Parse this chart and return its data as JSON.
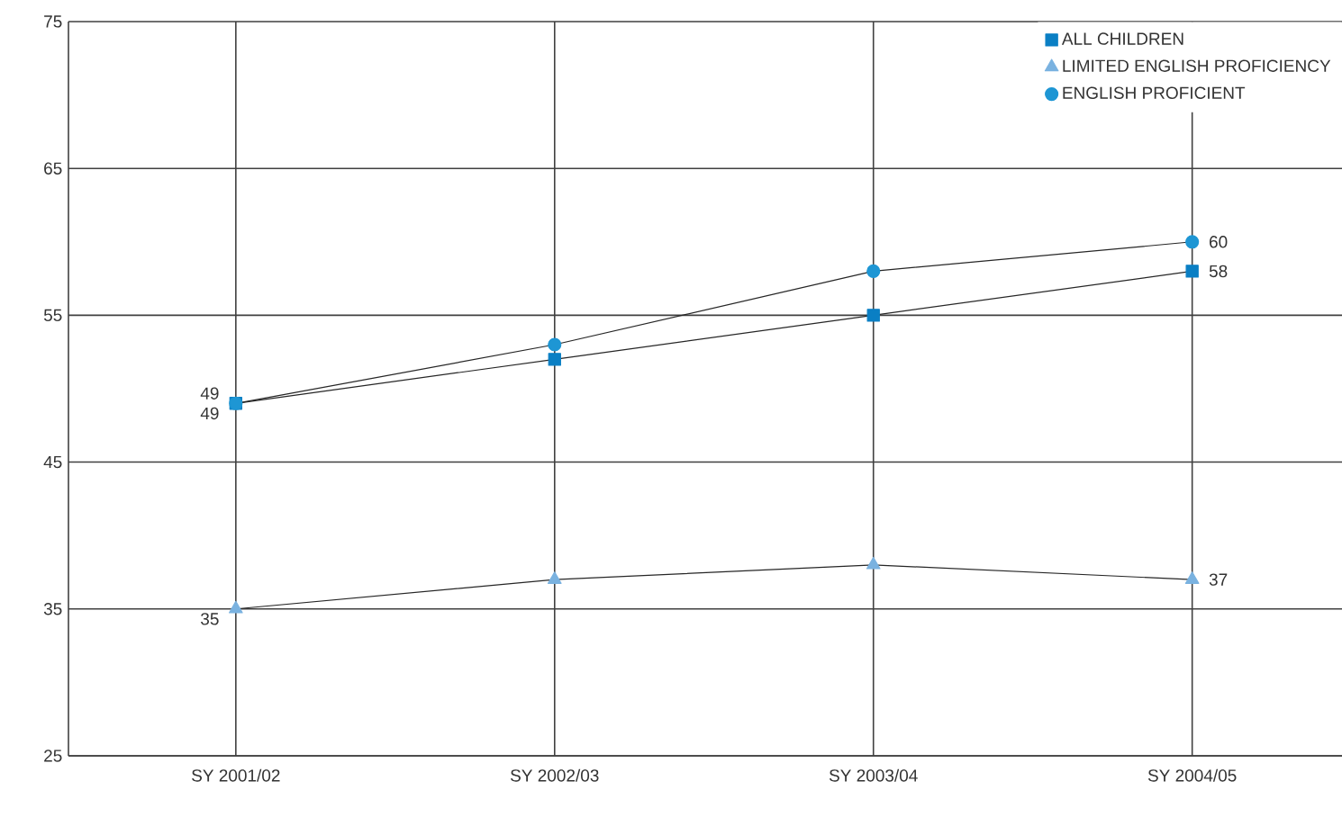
{
  "chart_data": {
    "type": "line",
    "categories": [
      "SY 2001/02",
      "SY 2002/03",
      "SY 2003/04",
      "SY 2004/05"
    ],
    "series": [
      {
        "name": "ALL CHILDREN",
        "color": "#0a7fc4",
        "marker": "square",
        "values": [
          49,
          52,
          55,
          58
        ],
        "value_labels": [
          "49",
          null,
          null,
          "58"
        ]
      },
      {
        "name": "LIMITED ENGLISH PROFICIENCY",
        "color": "#7ab2e0",
        "marker": "triangle",
        "values": [
          35,
          37,
          38,
          37
        ],
        "value_labels": [
          "35",
          null,
          null,
          "37"
        ]
      },
      {
        "name": "ENGLISH PROFICIENT",
        "color": "#1e96d4",
        "marker": "circle",
        "values": [
          49,
          53,
          58,
          60
        ],
        "value_labels": [
          "49",
          null,
          null,
          "60"
        ]
      }
    ],
    "ylim": [
      25,
      75
    ],
    "yticks": [
      25,
      35,
      45,
      55,
      65,
      75
    ],
    "grid": true,
    "legend": "top right",
    "line_style": "solid"
  }
}
